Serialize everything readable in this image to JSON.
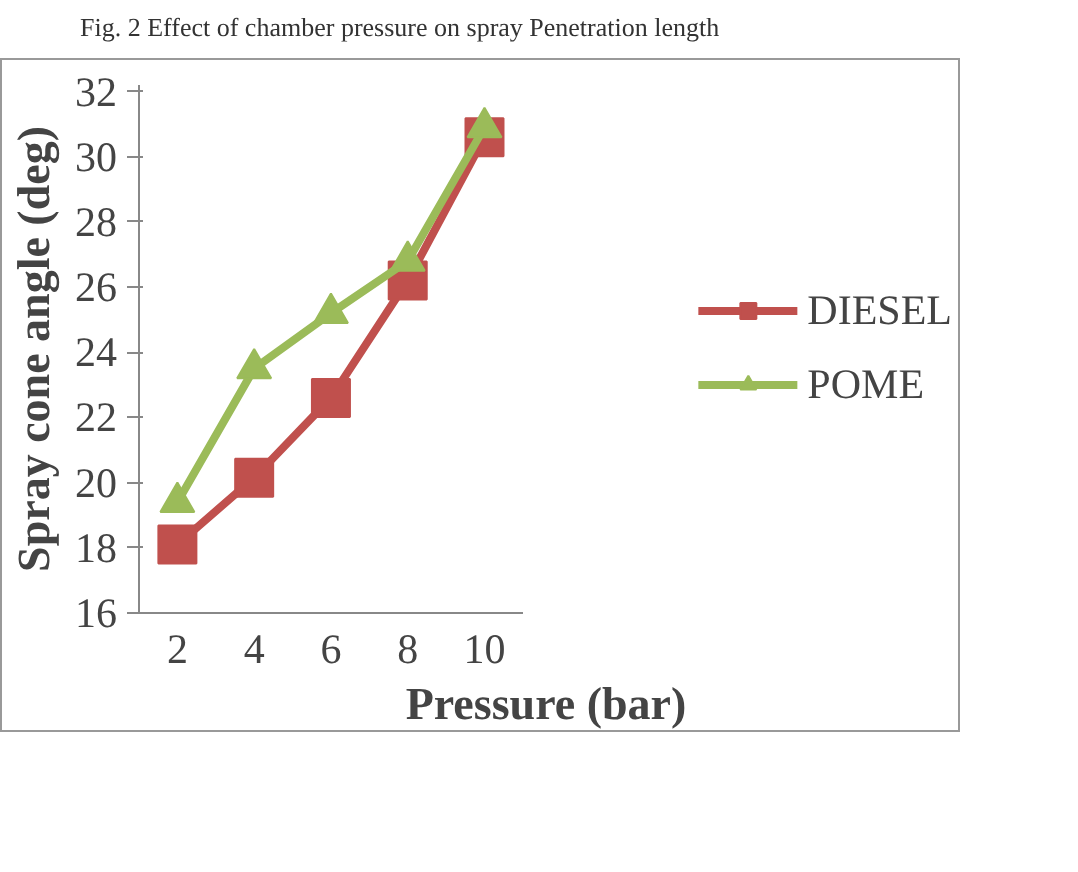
{
  "chart_data": {
    "type": "line",
    "annotations": [
      "Fig. 2 Effect of chamber pressure on spray Penetration length"
    ],
    "xlabel": "Pressure (bar)",
    "ylabel": "Spray cone angle (deg)",
    "categories": [
      "2",
      "4",
      "6",
      "8",
      "10"
    ],
    "series": [
      {
        "name": "DIESEL",
        "color": "#c0504d",
        "marker": "square",
        "values": [
          18.1,
          20.15,
          22.6,
          26.2,
          30.6
        ]
      },
      {
        "name": "POME",
        "color": "#9bbb59",
        "marker": "triangle",
        "values": [
          19.4,
          23.5,
          25.2,
          26.8,
          30.9
        ]
      }
    ],
    "ylim": [
      16,
      32.2
    ],
    "yticks": [
      16,
      18,
      20,
      22,
      24,
      26,
      28,
      30,
      32
    ],
    "grid": false,
    "legend": "right",
    "line_style": "solid"
  }
}
